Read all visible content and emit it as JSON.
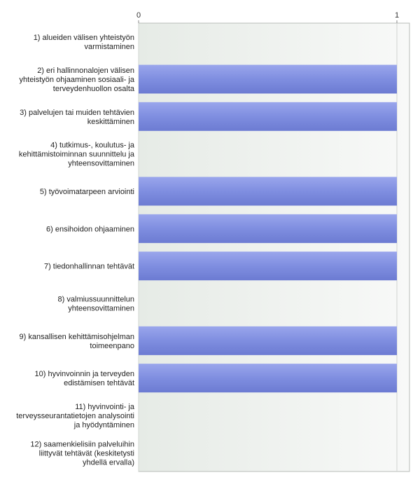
{
  "chart_data": {
    "type": "bar",
    "orientation": "horizontal",
    "title": "",
    "xlabel": "",
    "ylabel": "",
    "xlim": [
      0,
      1
    ],
    "x_ticks": [
      "0",
      "1"
    ],
    "axis_position": "top",
    "grid": true,
    "legend": "none",
    "bar_color": "#7f8ee0",
    "categories": [
      [
        "1) alueiden välisen yhteistyön",
        "varmistaminen"
      ],
      [
        "2) eri hallinnonalojen välisen",
        "yhteistyön ohjaaminen sosiaali- ja",
        "terveydenhuollon osalta"
      ],
      [
        "3) palvelujen tai muiden tehtävien",
        "keskittäminen"
      ],
      [
        "4) tutkimus-, koulutus- ja",
        "kehittämistoiminnan suunnittelu ja",
        "yhteensovittaminen"
      ],
      [
        "5) työvoimatarpeen arviointi"
      ],
      [
        "6) ensihoidon ohjaaminen"
      ],
      [
        "7) tiedonhallinnan tehtävät"
      ],
      [
        "8) valmiussuunnittelun",
        "yhteensovittaminen"
      ],
      [
        "9) kansallisen kehittämisohjelman",
        "toimeenpano"
      ],
      [
        "10) hyvinvoinnin ja terveyden",
        "edistämisen tehtävät"
      ],
      [
        "11) hyvinvointi- ja",
        "terveysseurantatietojen analysointi",
        "ja hyödyntäminen"
      ],
      [
        "12) saamenkielisiin palveluihin",
        "liittyvät tehtävät (keskitetysti",
        "yhdellä ervalla)"
      ]
    ],
    "values": [
      0,
      1,
      1,
      0,
      1,
      1,
      1,
      0,
      1,
      1,
      0,
      0
    ]
  }
}
